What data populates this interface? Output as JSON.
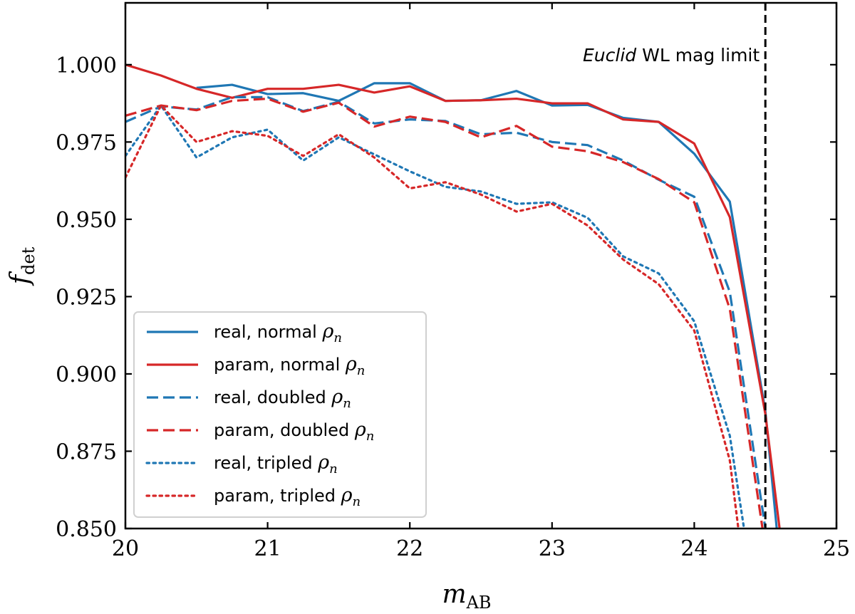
{
  "chart_data": {
    "type": "line",
    "xlabel": "m",
    "xlabel_sub": "AB",
    "ylabel": "f",
    "ylabel_sub": "det",
    "xlim": [
      20,
      25
    ],
    "ylim": [
      0.85,
      1.02
    ],
    "xticks": [
      20,
      21,
      22,
      23,
      24,
      25
    ],
    "yticks": [
      0.85,
      0.875,
      0.9,
      0.925,
      0.95,
      0.975,
      1.0
    ],
    "xtick_labels": [
      "20",
      "21",
      "22",
      "23",
      "24",
      "25"
    ],
    "ytick_labels": [
      "0.850",
      "0.875",
      "0.900",
      "0.925",
      "0.950",
      "0.975",
      "1.000"
    ],
    "vline": {
      "x": 24.5,
      "label_italic": "Euclid",
      "label_rest": " WL mag limit"
    },
    "legend_position": "lower-left",
    "colors": {
      "blue": "#1f77b4",
      "red": "#d62728"
    },
    "series": [
      {
        "name": "real, normal ρn",
        "label": "real, normal ",
        "rho": "ρ",
        "rho_sub": "n",
        "color": "#1f77b4",
        "style": "solid",
        "x": [
          20.5,
          20.75,
          21.0,
          21.25,
          21.5,
          21.75,
          22.0,
          22.25,
          22.5,
          22.75,
          23.0,
          23.25,
          23.5,
          23.75,
          24.0,
          24.25,
          24.5,
          24.58
        ],
        "y": [
          0.9925,
          0.9935,
          0.9905,
          0.9908,
          0.9883,
          0.994,
          0.994,
          0.9883,
          0.9885,
          0.9915,
          0.9868,
          0.987,
          0.9828,
          0.9815,
          0.9712,
          0.9557,
          0.888,
          0.85
        ]
      },
      {
        "name": "param, normal ρn",
        "label": "param, normal ",
        "rho": "ρ",
        "rho_sub": "n",
        "color": "#d62728",
        "style": "solid",
        "x": [
          20.0,
          20.25,
          20.5,
          20.75,
          21.0,
          21.25,
          21.5,
          21.75,
          22.0,
          22.25,
          22.5,
          22.75,
          23.0,
          23.25,
          23.5,
          23.75,
          24.0,
          24.25,
          24.5,
          24.6
        ],
        "y": [
          1.0,
          0.9965,
          0.9922,
          0.9893,
          0.9922,
          0.9922,
          0.9935,
          0.991,
          0.993,
          0.9883,
          0.9885,
          0.989,
          0.9875,
          0.9875,
          0.9823,
          0.9815,
          0.9745,
          0.9507,
          0.887,
          0.85
        ]
      },
      {
        "name": "real, doubled ρn",
        "label": "real, doubled ",
        "rho": "ρ",
        "rho_sub": "n",
        "color": "#1f77b4",
        "style": "dashed",
        "x": [
          20.0,
          20.25,
          20.5,
          20.75,
          21.0,
          21.25,
          21.5,
          21.75,
          22.0,
          22.25,
          22.5,
          22.75,
          23.0,
          23.25,
          23.5,
          23.75,
          24.0,
          24.25,
          24.5
        ],
        "y": [
          0.9815,
          0.9865,
          0.9855,
          0.9895,
          0.9895,
          0.985,
          0.988,
          0.981,
          0.9823,
          0.9818,
          0.9775,
          0.978,
          0.975,
          0.974,
          0.969,
          0.9628,
          0.9573,
          0.9265,
          0.85
        ]
      },
      {
        "name": "param, doubled ρn",
        "label": "param, doubled ",
        "rho": "ρ",
        "rho_sub": "n",
        "color": "#d62728",
        "style": "dashed",
        "x": [
          20.0,
          20.25,
          20.5,
          20.75,
          21.0,
          21.25,
          21.5,
          21.75,
          22.0,
          22.25,
          22.5,
          22.75,
          23.0,
          23.25,
          23.5,
          23.75,
          24.0,
          24.25,
          24.48
        ],
        "y": [
          0.9835,
          0.9868,
          0.9853,
          0.9883,
          0.989,
          0.9848,
          0.9877,
          0.98,
          0.9832,
          0.9815,
          0.9765,
          0.9802,
          0.9735,
          0.972,
          0.9685,
          0.963,
          0.9555,
          0.921,
          0.85
        ]
      },
      {
        "name": "real, tripled ρn",
        "label": "real, tripled ",
        "rho": "ρ",
        "rho_sub": "n",
        "color": "#1f77b4",
        "style": "dotted",
        "x": [
          20.0,
          20.25,
          20.5,
          20.75,
          21.0,
          21.25,
          21.5,
          21.75,
          22.0,
          22.25,
          22.5,
          22.75,
          23.0,
          23.25,
          23.5,
          23.75,
          24.0,
          24.25,
          24.35
        ],
        "y": [
          0.9705,
          0.9868,
          0.97,
          0.9765,
          0.979,
          0.969,
          0.9765,
          0.971,
          0.9655,
          0.9605,
          0.959,
          0.955,
          0.9555,
          0.9505,
          0.938,
          0.9325,
          0.917,
          0.88,
          0.85
        ]
      },
      {
        "name": "param, tripled ρn",
        "label": "param, tripled ",
        "rho": "ρ",
        "rho_sub": "n",
        "color": "#d62728",
        "style": "dotted",
        "x": [
          20.0,
          20.25,
          20.5,
          20.75,
          21.0,
          21.25,
          21.5,
          21.75,
          22.0,
          22.25,
          22.5,
          22.75,
          23.0,
          23.25,
          23.5,
          23.75,
          24.0,
          24.25,
          24.31
        ],
        "y": [
          0.9635,
          0.9868,
          0.975,
          0.9785,
          0.977,
          0.9705,
          0.9775,
          0.97,
          0.96,
          0.962,
          0.958,
          0.9525,
          0.955,
          0.948,
          0.937,
          0.929,
          0.914,
          0.872,
          0.85
        ]
      }
    ]
  }
}
